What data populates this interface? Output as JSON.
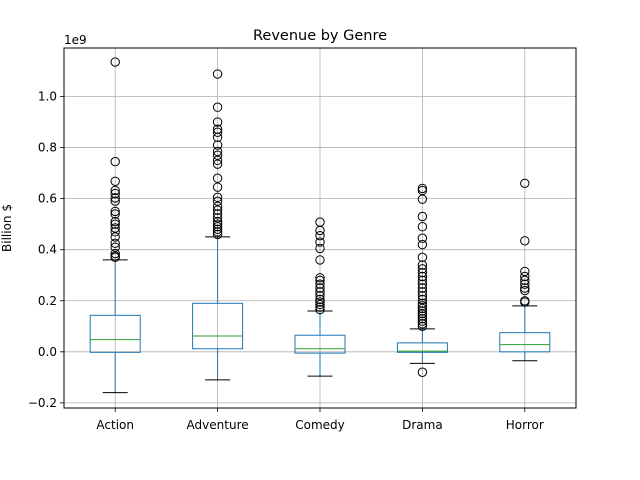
{
  "chart_data": {
    "type": "box",
    "title": "Revenue by Genre",
    "xlabel": "",
    "ylabel": "Billion $",
    "y_offset_label": "1e9",
    "ylim": [
      -0.22,
      1.19
    ],
    "yticks": [
      -0.2,
      0.0,
      0.2,
      0.4,
      0.6,
      0.8,
      1.0
    ],
    "ytick_labels": [
      "−0.2",
      "0.0",
      "0.2",
      "0.4",
      "0.6",
      "0.8",
      "1.0"
    ],
    "grid": true,
    "categories": [
      "Action",
      "Adventure",
      "Comedy",
      "Drama",
      "Horror"
    ],
    "boxes": [
      {
        "name": "Action",
        "whisker_low": -0.16,
        "q1": -0.002,
        "median": 0.048,
        "q3": 0.143,
        "whisker_high": 0.36,
        "outliers": [
          1.135,
          0.745,
          0.668,
          0.632,
          0.62,
          0.603,
          0.59,
          0.55,
          0.54,
          0.51,
          0.5,
          0.485,
          0.47,
          0.45,
          0.425,
          0.41,
          0.385,
          0.375,
          0.37
        ]
      },
      {
        "name": "Adventure",
        "whisker_low": -0.11,
        "q1": 0.012,
        "median": 0.062,
        "q3": 0.19,
        "whisker_high": 0.45,
        "outliers": [
          1.088,
          0.958,
          0.9,
          0.872,
          0.86,
          0.84,
          0.81,
          0.785,
          0.77,
          0.75,
          0.735,
          0.68,
          0.645,
          0.605,
          0.59,
          0.57,
          0.555,
          0.54,
          0.525,
          0.51,
          0.5,
          0.49,
          0.48,
          0.47,
          0.46
        ]
      },
      {
        "name": "Comedy",
        "whisker_low": -0.095,
        "q1": -0.005,
        "median": 0.012,
        "q3": 0.065,
        "whisker_high": 0.16,
        "outliers": [
          0.508,
          0.475,
          0.455,
          0.43,
          0.405,
          0.36,
          0.29,
          0.28,
          0.265,
          0.25,
          0.235,
          0.22,
          0.205,
          0.195,
          0.185,
          0.175,
          0.165
        ]
      },
      {
        "name": "Drama",
        "whisker_low": -0.045,
        "q1": -0.002,
        "median": 0.003,
        "q3": 0.035,
        "whisker_high": 0.09,
        "outliers": [
          0.64,
          0.632,
          0.598,
          0.53,
          0.49,
          0.445,
          0.42,
          0.37,
          0.34,
          0.325,
          0.31,
          0.295,
          0.28,
          0.265,
          0.25,
          0.235,
          0.22,
          0.205,
          0.19,
          0.18,
          0.17,
          0.16,
          0.15,
          0.14,
          0.13,
          0.12,
          0.11,
          0.1,
          -0.08
        ]
      },
      {
        "name": "Horror",
        "whisker_low": -0.035,
        "q1": 0.0,
        "median": 0.028,
        "q3": 0.075,
        "whisker_high": 0.18,
        "outliers": [
          0.66,
          0.435,
          0.315,
          0.295,
          0.28,
          0.265,
          0.25,
          0.24,
          0.2,
          0.195
        ]
      }
    ],
    "colors": {
      "box": "#1f77b4",
      "median": "#2ca02c",
      "whisker": "#1f77b4",
      "cap": "#000000",
      "outlier": "#000000",
      "grid": "#b0b0b0"
    }
  }
}
